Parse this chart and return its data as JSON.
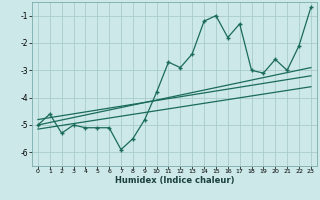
{
  "title": "",
  "xlabel": "Humidex (Indice chaleur)",
  "ylabel": "",
  "bg_color": "#cce8e8",
  "grid_color": "#aacccc",
  "line_color": "#1a6b5a",
  "xlim": [
    -0.5,
    23.5
  ],
  "ylim": [
    -6.5,
    -0.5
  ],
  "xticks": [
    0,
    1,
    2,
    3,
    4,
    5,
    6,
    7,
    8,
    9,
    10,
    11,
    12,
    13,
    14,
    15,
    16,
    17,
    18,
    19,
    20,
    21,
    22,
    23
  ],
  "yticks": [
    -6,
    -5,
    -4,
    -3,
    -2,
    -1
  ],
  "data_x": [
    0,
    1,
    2,
    3,
    4,
    5,
    6,
    7,
    8,
    9,
    10,
    11,
    12,
    13,
    14,
    15,
    16,
    17,
    18,
    19,
    20,
    21,
    22,
    23
  ],
  "data_y": [
    -5.0,
    -4.6,
    -5.3,
    -5.0,
    -5.1,
    -5.1,
    -5.1,
    -5.9,
    -5.5,
    -4.8,
    -3.8,
    -2.7,
    -2.9,
    -2.4,
    -1.2,
    -1.0,
    -1.8,
    -1.3,
    -3.0,
    -3.1,
    -2.6,
    -3.0,
    -2.1,
    -0.7
  ],
  "trend1_x": [
    0,
    23
  ],
  "trend1_y": [
    -4.8,
    -3.2
  ],
  "trend2_x": [
    0,
    23
  ],
  "trend2_y": [
    -5.0,
    -2.9
  ],
  "trend3_x": [
    0,
    23
  ],
  "trend3_y": [
    -5.15,
    -3.6
  ]
}
